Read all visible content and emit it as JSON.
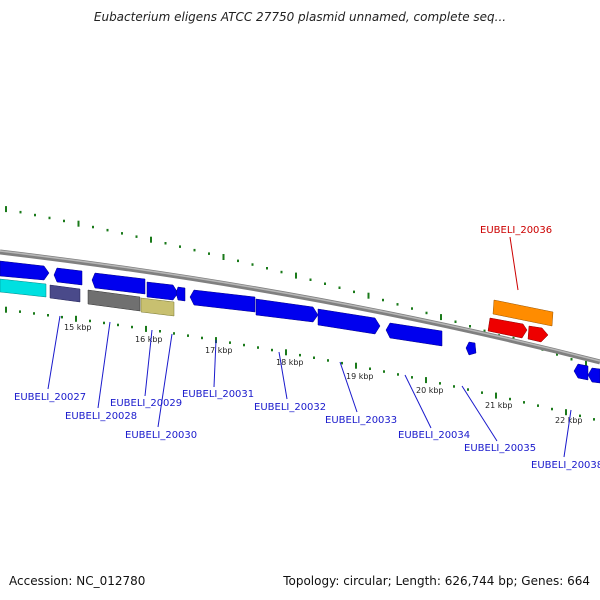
{
  "title": "Eubacterium eligens ATCC 27750 plasmid unnamed, complete seq...",
  "footer": {
    "accession_label": "Accession:",
    "accession": "NC_012780",
    "topology_label": "Topology:",
    "topology": "circular",
    "length_label": "Length:",
    "length": "626,744 bp",
    "genes_label": "Genes:",
    "genes": "664"
  },
  "colors": {
    "backbone": "#808080",
    "forward_gene": "#0000ee",
    "reverse_gene": "#0000cc",
    "label_blue": "#1a1acc",
    "label_red": "#cc0000",
    "tick_green": "#1a7a1a",
    "cyan": "#00e0e0",
    "slate": "#4a4a8a",
    "grey": "#707070",
    "khaki": "#c8c070",
    "orange": "#ff8c00",
    "red": "#ee0000"
  },
  "kbp_ticks": [
    "15 kbp",
    "16 kbp",
    "17 kbp",
    "18 kbp",
    "19 kbp",
    "20 kbp",
    "21 kbp",
    "22 kbp"
  ],
  "gene_labels": [
    {
      "id": "EUBELI_20027",
      "color": "blue"
    },
    {
      "id": "EUBELI_20028",
      "color": "blue"
    },
    {
      "id": "EUBELI_20029",
      "color": "blue"
    },
    {
      "id": "EUBELI_20030",
      "color": "blue"
    },
    {
      "id": "EUBELI_20031",
      "color": "blue"
    },
    {
      "id": "EUBELI_20032",
      "color": "blue"
    },
    {
      "id": "EUBELI_20033",
      "color": "blue"
    },
    {
      "id": "EUBELI_20034",
      "color": "blue"
    },
    {
      "id": "EUBELI_20035",
      "color": "blue"
    },
    {
      "id": "EUBELI_20038",
      "color": "blue"
    },
    {
      "id": "EUBELI_20036",
      "color": "red"
    }
  ]
}
